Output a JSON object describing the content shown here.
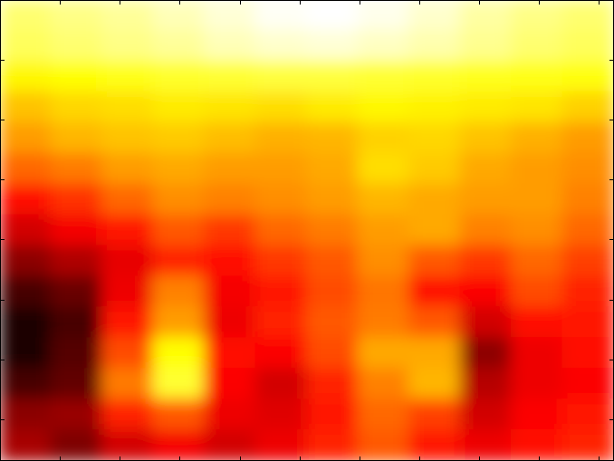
{
  "chart_data": {
    "type": "heatmap",
    "title": "",
    "xlabel": "",
    "ylabel": "",
    "colormap": "hot",
    "color_range": [
      0,
      1
    ],
    "grid": false,
    "colorbar": false,
    "tick_labels": "none",
    "x_tick_count": 10,
    "y_tick_count": 7,
    "values": [
      [
        0.86,
        0.88,
        0.9,
        0.93,
        0.96,
        0.99,
        1.0,
        0.98,
        0.95,
        0.91,
        0.88,
        0.86
      ],
      [
        0.84,
        0.86,
        0.88,
        0.9,
        0.93,
        0.95,
        0.96,
        0.94,
        0.92,
        0.89,
        0.86,
        0.84
      ],
      [
        0.74,
        0.75,
        0.77,
        0.79,
        0.8,
        0.81,
        0.81,
        0.8,
        0.79,
        0.78,
        0.77,
        0.76
      ],
      [
        0.66,
        0.69,
        0.7,
        0.72,
        0.71,
        0.7,
        0.72,
        0.74,
        0.73,
        0.72,
        0.71,
        0.68
      ],
      [
        0.6,
        0.64,
        0.66,
        0.67,
        0.65,
        0.63,
        0.64,
        0.68,
        0.69,
        0.66,
        0.63,
        0.6
      ],
      [
        0.52,
        0.55,
        0.6,
        0.62,
        0.6,
        0.6,
        0.62,
        0.7,
        0.67,
        0.62,
        0.6,
        0.58
      ],
      [
        0.38,
        0.44,
        0.52,
        0.58,
        0.56,
        0.58,
        0.6,
        0.64,
        0.62,
        0.6,
        0.6,
        0.56
      ],
      [
        0.3,
        0.35,
        0.4,
        0.5,
        0.45,
        0.52,
        0.55,
        0.6,
        0.62,
        0.56,
        0.58,
        0.52
      ],
      [
        0.2,
        0.25,
        0.33,
        0.42,
        0.38,
        0.45,
        0.5,
        0.58,
        0.5,
        0.45,
        0.52,
        0.46
      ],
      [
        0.1,
        0.15,
        0.34,
        0.56,
        0.35,
        0.4,
        0.48,
        0.54,
        0.38,
        0.36,
        0.48,
        0.42
      ],
      [
        0.04,
        0.1,
        0.4,
        0.6,
        0.34,
        0.42,
        0.5,
        0.55,
        0.5,
        0.3,
        0.38,
        0.4
      ],
      [
        0.04,
        0.12,
        0.48,
        0.75,
        0.38,
        0.36,
        0.48,
        0.62,
        0.62,
        0.2,
        0.34,
        0.38
      ],
      [
        0.1,
        0.14,
        0.55,
        0.8,
        0.36,
        0.3,
        0.42,
        0.56,
        0.64,
        0.26,
        0.34,
        0.36
      ],
      [
        0.2,
        0.22,
        0.42,
        0.5,
        0.34,
        0.32,
        0.4,
        0.52,
        0.46,
        0.3,
        0.36,
        0.4
      ],
      [
        0.24,
        0.18,
        0.3,
        0.35,
        0.3,
        0.34,
        0.42,
        0.5,
        0.4,
        0.34,
        0.38,
        0.42
      ]
    ]
  },
  "colors": {
    "frame": "#000000",
    "background": "#ffffff"
  }
}
